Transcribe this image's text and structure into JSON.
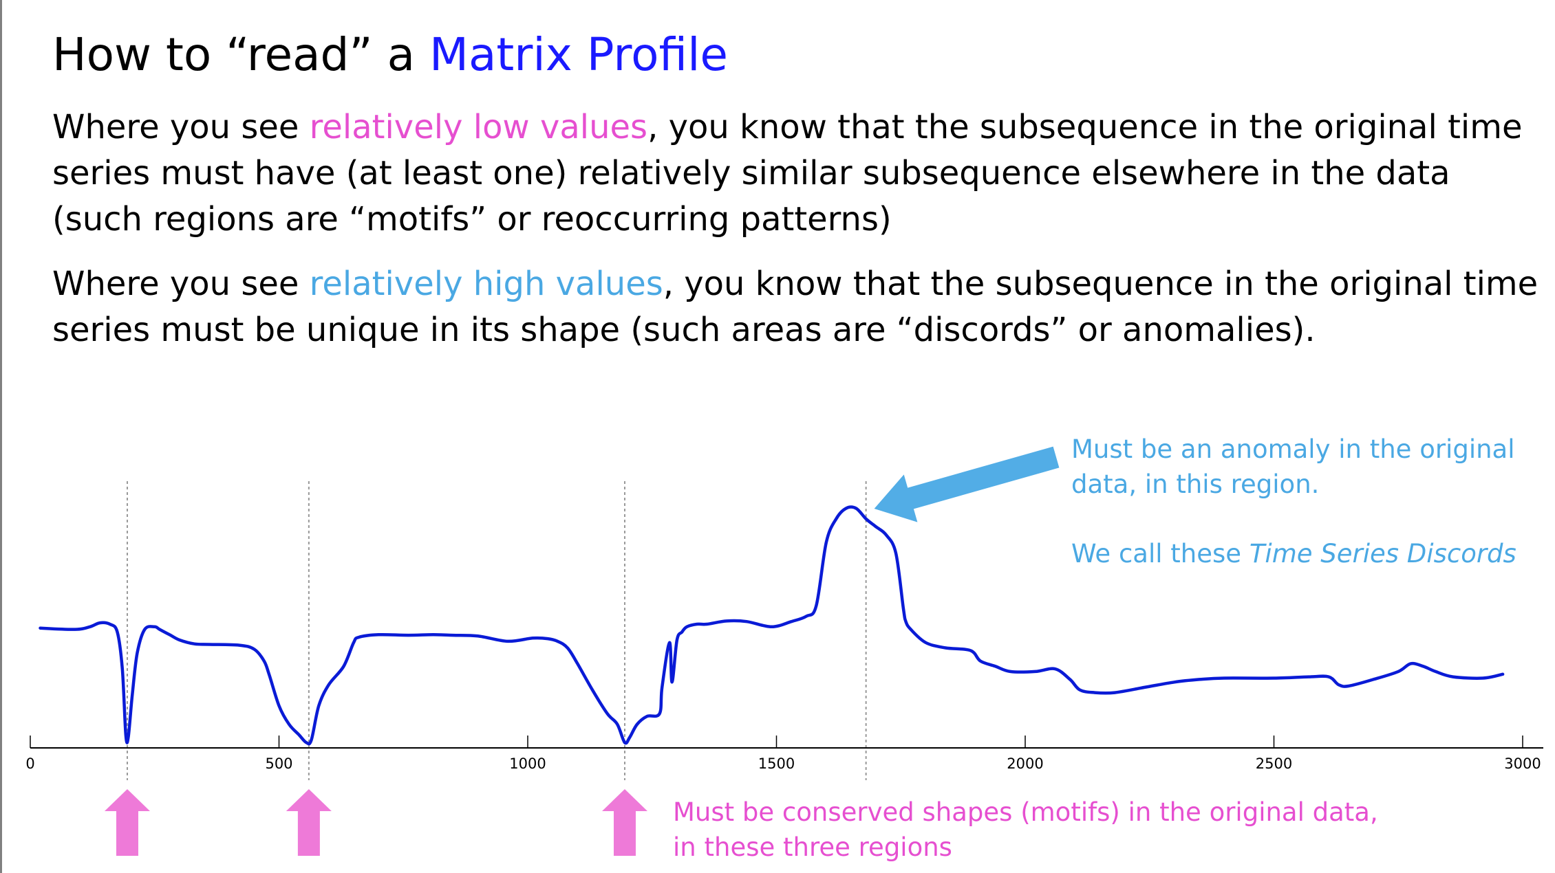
{
  "title": {
    "prefix": "How to “read” a ",
    "highlight": "Matrix Profile"
  },
  "paragraph1": {
    "before": "Where you see ",
    "highlight": "relatively low values",
    "after": ", you know that the subsequence in the original time series must have (at least one) relatively similar subsequence elsewhere in the data (such regions are “motifs” or reoccurring patterns)"
  },
  "paragraph2": {
    "before": "Where you see ",
    "highlight": "relatively high values",
    "after": ", you know that the subsequence in the original time series must be unique in its shape (such areas are “discords” or anomalies)."
  },
  "annotation_discord": {
    "line1": "Must be an anomaly in the original",
    "line2": "data, in this region.",
    "line3_prefix": "We call these ",
    "line3_italic": "Time Series Discords"
  },
  "annotation_motif": {
    "line1": "Must be conserved shapes (motifs) in the original data,",
    "line2": "in these three regions"
  },
  "colors": {
    "line": "#0a1bd6",
    "motif_pink": "#e64fd0",
    "discord_blue": "#4aa8e3",
    "arrow_pink": "#ee7ad8",
    "arrow_blue": "#52ade6"
  },
  "chart_data": {
    "type": "line",
    "xlim": [
      0,
      3000
    ],
    "ylim": [
      0,
      1
    ],
    "x_ticks": [
      0,
      500,
      1000,
      1500,
      2000,
      2500,
      3000
    ],
    "x_tick_labels": [
      "0",
      "500",
      "1000",
      "1500",
      "2000",
      "2500",
      "3000"
    ],
    "y_axis_visible": false,
    "grid": false,
    "marker_lines_x": [
      195,
      560,
      1195,
      1680
    ],
    "motif_arrows_x": [
      195,
      560,
      1195
    ],
    "discord_arrow_x": 1680,
    "series": [
      {
        "x": [
          20,
          90,
          120,
          140,
          160,
          175,
          185,
          192,
          197,
          205,
          215,
          230,
          250,
          260,
          280,
          300,
          330,
          360,
          420,
          450,
          470,
          480,
          500,
          520,
          540,
          555,
          565,
          580,
          600,
          630,
          650,
          660,
          700,
          760,
          810,
          850,
          900,
          960,
          1010,
          1040,
          1060,
          1080,
          1100,
          1130,
          1160,
          1180,
          1195,
          1205,
          1220,
          1240,
          1265,
          1270,
          1285,
          1290,
          1300,
          1310,
          1320,
          1340,
          1360,
          1400,
          1440,
          1490,
          1530,
          1560,
          1580,
          1600,
          1620,
          1640,
          1660,
          1680,
          1700,
          1720,
          1740,
          1755,
          1760,
          1770,
          1800,
          1840,
          1890,
          1910,
          1940,
          1970,
          2020,
          2060,
          2090,
          2110,
          2140,
          2180,
          2240,
          2300,
          2350,
          2400,
          2500,
          2570,
          2610,
          2630,
          2650,
          2700,
          2750,
          2775,
          2800,
          2825,
          2860,
          2920,
          2960
        ],
        "y": [
          0.455,
          0.45,
          0.46,
          0.475,
          0.47,
          0.44,
          0.3,
          0.05,
          0.04,
          0.2,
          0.36,
          0.45,
          0.46,
          0.45,
          0.43,
          0.41,
          0.395,
          0.393,
          0.39,
          0.375,
          0.33,
          0.28,
          0.16,
          0.09,
          0.05,
          0.02,
          0.03,
          0.16,
          0.24,
          0.31,
          0.4,
          0.42,
          0.43,
          0.428,
          0.43,
          0.428,
          0.425,
          0.405,
          0.417,
          0.415,
          0.405,
          0.38,
          0.32,
          0.22,
          0.13,
          0.09,
          0.02,
          0.04,
          0.09,
          0.12,
          0.13,
          0.23,
          0.4,
          0.25,
          0.41,
          0.44,
          0.46,
          0.47,
          0.47,
          0.482,
          0.48,
          0.46,
          0.48,
          0.5,
          0.54,
          0.78,
          0.87,
          0.91,
          0.91,
          0.87,
          0.84,
          0.81,
          0.74,
          0.53,
          0.48,
          0.45,
          0.4,
          0.38,
          0.37,
          0.33,
          0.31,
          0.29,
          0.29,
          0.3,
          0.26,
          0.22,
          0.21,
          0.21,
          0.23,
          0.25,
          0.26,
          0.265,
          0.265,
          0.27,
          0.27,
          0.24,
          0.235,
          0.26,
          0.29,
          0.32,
          0.31,
          0.29,
          0.27,
          0.265,
          0.28
        ]
      }
    ]
  }
}
